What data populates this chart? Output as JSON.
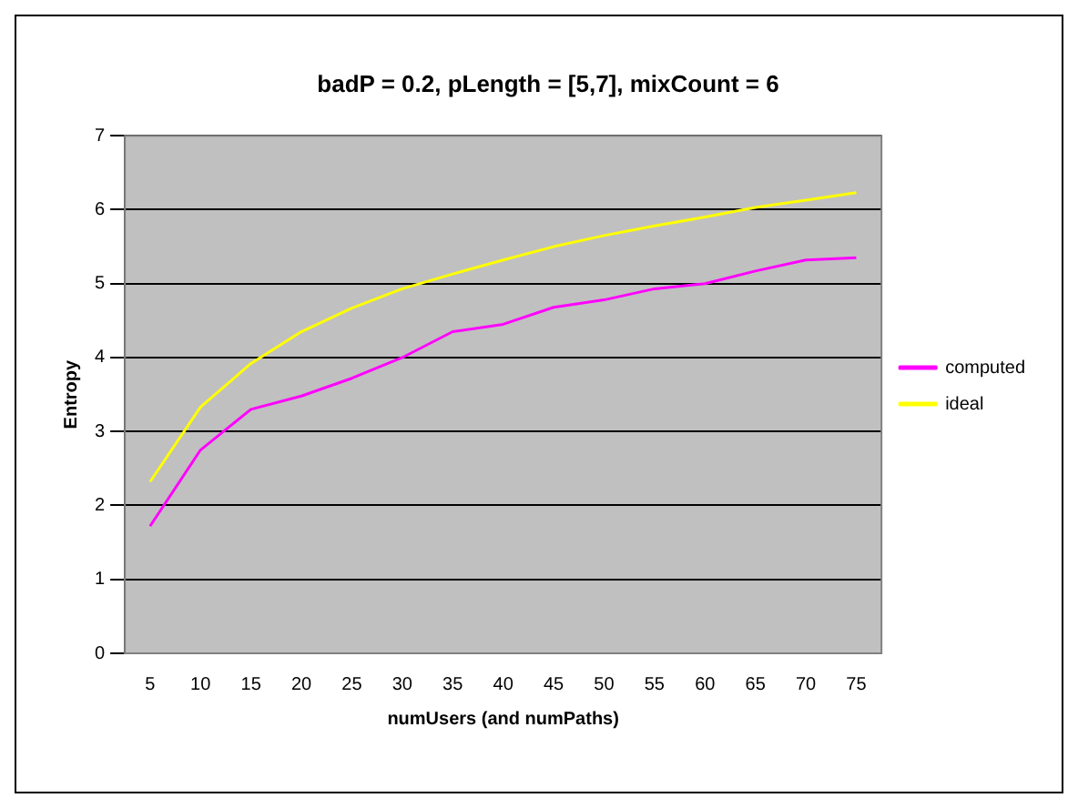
{
  "chart_data": {
    "type": "line",
    "title": "badP = 0.2, pLength = [5,7], mixCount = 6",
    "xlabel": "numUsers (and numPaths)",
    "ylabel": "Entropy",
    "categories": [
      "5",
      "10",
      "15",
      "20",
      "25",
      "30",
      "35",
      "40",
      "45",
      "50",
      "55",
      "60",
      "65",
      "70",
      "75"
    ],
    "series": [
      {
        "name": "computed",
        "color": "#ff00ff",
        "values": [
          1.72,
          2.75,
          3.3,
          3.48,
          3.72,
          4.0,
          4.35,
          4.45,
          4.68,
          4.78,
          4.93,
          5.0,
          5.17,
          5.32,
          5.35
        ]
      },
      {
        "name": "ideal",
        "color": "#ffff00",
        "values": [
          2.32,
          3.33,
          3.92,
          4.35,
          4.67,
          4.93,
          5.13,
          5.32,
          5.5,
          5.65,
          5.78,
          5.9,
          6.03,
          6.13,
          6.23
        ]
      }
    ],
    "ylim": [
      0,
      7
    ],
    "yticks": [
      0,
      1,
      2,
      3,
      4,
      5,
      6,
      7
    ],
    "grid": "y",
    "legend": "right",
    "marker": "none",
    "line_style": "solid"
  }
}
